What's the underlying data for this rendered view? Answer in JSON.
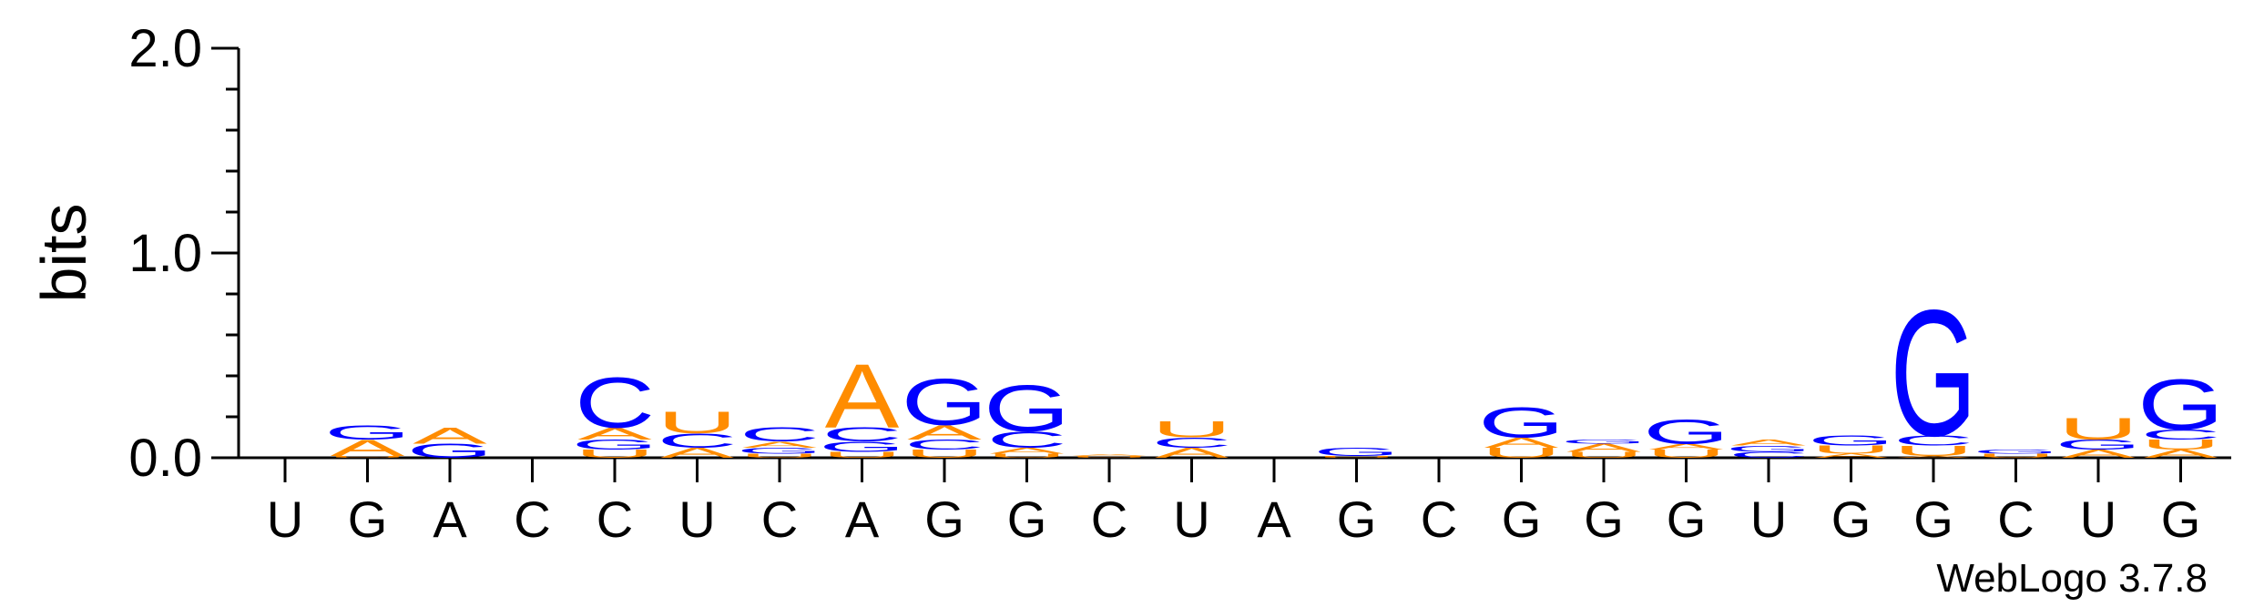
{
  "chart_data": {
    "type": "sequence-logo",
    "ylabel": "bits",
    "ylim": [
      0,
      2.0
    ],
    "yticks": [
      "0.0",
      "1.0",
      "2.0"
    ],
    "xticks": [
      "U",
      "G",
      "A",
      "C",
      "C",
      "U",
      "C",
      "A",
      "G",
      "G",
      "C",
      "U",
      "A",
      "G",
      "C",
      "G",
      "G",
      "G",
      "U",
      "G",
      "G",
      "C",
      "U",
      "G"
    ],
    "footer": "WebLogo 3.7.8",
    "colors": {
      "A": "#ff8c00",
      "U": "#ff8c00",
      "G": "#0000ff",
      "C": "#0000ff"
    },
    "positions": [
      [],
      [
        [
          "U",
          0.01
        ],
        [
          "A",
          0.08
        ],
        [
          "G",
          0.07
        ]
      ],
      [
        [
          "G",
          0.07
        ],
        [
          "A",
          0.08
        ]
      ],
      [],
      [
        [
          "U",
          0.04
        ],
        [
          "G",
          0.05
        ],
        [
          "A",
          0.06
        ],
        [
          "C",
          0.25
        ]
      ],
      [
        [
          "A",
          0.05
        ],
        [
          "C",
          0.07
        ],
        [
          "U",
          0.11
        ]
      ],
      [
        [
          "U",
          0.02
        ],
        [
          "G",
          0.03
        ],
        [
          "A",
          0.03
        ],
        [
          "C",
          0.07
        ]
      ],
      [
        [
          "U",
          0.03
        ],
        [
          "G",
          0.05
        ],
        [
          "C",
          0.07
        ],
        [
          "A",
          0.32
        ]
      ],
      [
        [
          "U",
          0.04
        ],
        [
          "C",
          0.05
        ],
        [
          "A",
          0.07
        ],
        [
          "G",
          0.23
        ]
      ],
      [
        [
          "U",
          0.02
        ],
        [
          "A",
          0.03
        ],
        [
          "C",
          0.08
        ],
        [
          "G",
          0.23
        ]
      ],
      [
        [
          "U",
          0.01
        ],
        [
          "A",
          0.01
        ]
      ],
      [
        [
          "A",
          0.05
        ],
        [
          "C",
          0.05
        ],
        [
          "U",
          0.08
        ]
      ],
      [],
      [
        [
          "U",
          0.01
        ],
        [
          "G",
          0.04
        ]
      ],
      [],
      [
        [
          "U",
          0.05
        ],
        [
          "A",
          0.05
        ],
        [
          "G",
          0.15
        ]
      ],
      [
        [
          "U",
          0.03
        ],
        [
          "A",
          0.04
        ],
        [
          "G",
          0.02
        ]
      ],
      [
        [
          "U",
          0.04
        ],
        [
          "A",
          0.03
        ],
        [
          "G",
          0.12
        ]
      ],
      [
        [
          "C",
          0.03
        ],
        [
          "G",
          0.03
        ],
        [
          "A",
          0.03
        ]
      ],
      [
        [
          "A",
          0.02
        ],
        [
          "U",
          0.04
        ],
        [
          "G",
          0.05
        ]
      ],
      [
        [
          "A",
          0.01
        ],
        [
          "U",
          0.05
        ],
        [
          "C",
          0.05
        ],
        [
          "G",
          0.63
        ]
      ],
      [
        [
          "U",
          0.02
        ],
        [
          "G",
          0.02
        ]
      ],
      [
        [
          "A",
          0.04
        ],
        [
          "G",
          0.05
        ],
        [
          "U",
          0.11
        ]
      ],
      [
        [
          "A",
          0.04
        ],
        [
          "U",
          0.05
        ],
        [
          "C",
          0.05
        ],
        [
          "G",
          0.25
        ]
      ]
    ]
  }
}
